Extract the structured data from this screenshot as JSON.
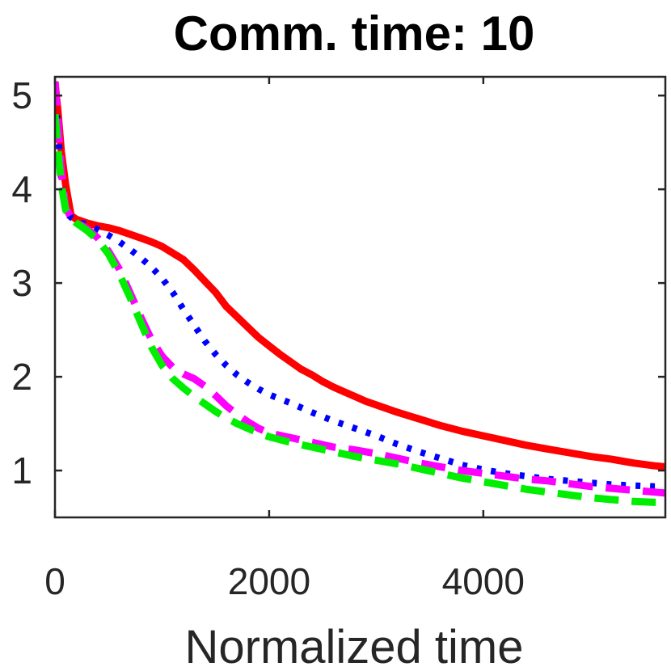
{
  "chart_data": {
    "type": "line",
    "title": "Comm. time: 10",
    "xlabel": "Normalized time",
    "ylabel": "",
    "xlim": [
      0,
      5700
    ],
    "ylim": [
      0.5,
      5.2
    ],
    "xticks": [
      0,
      2000,
      4000
    ],
    "xtick_labels": [
      "0",
      "2000",
      "4000"
    ],
    "yticks": [
      1,
      2,
      3,
      4,
      5
    ],
    "ytick_labels": [
      "1",
      "2",
      "3",
      "4",
      "5"
    ],
    "grid": false,
    "legend": "none",
    "series": [
      {
        "color": "#ff0000",
        "style": "solid",
        "x": [
          0,
          30,
          60,
          100,
          150,
          200,
          300,
          400,
          500,
          600,
          700,
          800,
          900,
          1000,
          1100,
          1200,
          1300,
          1400,
          1500,
          1600,
          1700,
          1800,
          1900,
          2000,
          2100,
          2200,
          2300,
          2400,
          2500,
          2600,
          2700,
          2800,
          2900,
          3000,
          3200,
          3400,
          3600,
          3800,
          4000,
          4200,
          4400,
          4600,
          4800,
          5000,
          5200,
          5400,
          5600,
          5700
        ],
        "y": [
          5.15,
          4.8,
          4.4,
          4.05,
          3.72,
          3.68,
          3.64,
          3.61,
          3.59,
          3.56,
          3.52,
          3.48,
          3.44,
          3.39,
          3.32,
          3.25,
          3.14,
          3.02,
          2.9,
          2.75,
          2.64,
          2.53,
          2.42,
          2.33,
          2.24,
          2.16,
          2.08,
          2.02,
          1.95,
          1.89,
          1.84,
          1.79,
          1.74,
          1.7,
          1.62,
          1.55,
          1.48,
          1.42,
          1.37,
          1.32,
          1.27,
          1.23,
          1.19,
          1.15,
          1.12,
          1.08,
          1.05,
          1.04
        ]
      },
      {
        "color": "#0000ff",
        "style": "dotted",
        "x": [
          0,
          30,
          60,
          100,
          150,
          200,
          300,
          400,
          500,
          600,
          700,
          800,
          900,
          1000,
          1100,
          1200,
          1300,
          1400,
          1500,
          1600,
          1700,
          1800,
          1900,
          2000,
          2200,
          2400,
          2600,
          2800,
          3000,
          3200,
          3400,
          3600,
          3800,
          4000,
          4200,
          4400,
          4600,
          4800,
          5000,
          5200,
          5400,
          5600,
          5700
        ],
        "y": [
          5.1,
          4.6,
          4.1,
          3.75,
          3.7,
          3.66,
          3.62,
          3.57,
          3.51,
          3.44,
          3.36,
          3.27,
          3.17,
          3.05,
          2.9,
          2.72,
          2.55,
          2.38,
          2.24,
          2.12,
          2.02,
          1.94,
          1.87,
          1.81,
          1.72,
          1.62,
          1.53,
          1.45,
          1.37,
          1.28,
          1.2,
          1.13,
          1.06,
          1.01,
          0.97,
          0.94,
          0.91,
          0.89,
          0.87,
          0.85,
          0.84,
          0.83,
          0.83
        ]
      },
      {
        "color": "#ff00ff",
        "style": "dashed",
        "x": [
          0,
          30,
          60,
          100,
          150,
          200,
          300,
          400,
          500,
          600,
          700,
          800,
          900,
          1000,
          1100,
          1200,
          1300,
          1400,
          1500,
          1600,
          1700,
          1800,
          1900,
          2000,
          2200,
          2400,
          2600,
          2800,
          3000,
          3200,
          3400,
          3600,
          3800,
          4000,
          4200,
          4400,
          4600,
          4800,
          5000,
          5200,
          5400,
          5600,
          5700
        ],
        "y": [
          5.15,
          4.7,
          4.2,
          3.8,
          3.7,
          3.65,
          3.58,
          3.48,
          3.34,
          3.15,
          2.9,
          2.64,
          2.4,
          2.22,
          2.1,
          2.03,
          1.98,
          1.9,
          1.8,
          1.69,
          1.6,
          1.52,
          1.45,
          1.4,
          1.35,
          1.3,
          1.25,
          1.22,
          1.18,
          1.13,
          1.08,
          1.04,
          1.0,
          0.97,
          0.94,
          0.91,
          0.89,
          0.86,
          0.83,
          0.81,
          0.79,
          0.77,
          0.76
        ]
      },
      {
        "color": "#00ee00",
        "style": "dashed",
        "x": [
          0,
          30,
          60,
          100,
          150,
          200,
          300,
          400,
          500,
          600,
          700,
          800,
          900,
          1000,
          1100,
          1200,
          1300,
          1400,
          1500,
          1600,
          1700,
          1800,
          1900,
          2000,
          2200,
          2400,
          2600,
          2800,
          3000,
          3200,
          3400,
          3600,
          3800,
          4000,
          4200,
          4400,
          4600,
          4800,
          5000,
          5200,
          5400,
          5600,
          5700
        ],
        "y": [
          4.8,
          4.4,
          4.05,
          3.78,
          3.7,
          3.64,
          3.56,
          3.46,
          3.31,
          3.1,
          2.85,
          2.58,
          2.32,
          2.12,
          1.98,
          1.88,
          1.79,
          1.71,
          1.63,
          1.56,
          1.5,
          1.45,
          1.4,
          1.36,
          1.3,
          1.25,
          1.2,
          1.15,
          1.11,
          1.07,
          1.02,
          0.97,
          0.92,
          0.88,
          0.84,
          0.8,
          0.77,
          0.74,
          0.71,
          0.69,
          0.67,
          0.66,
          0.66
        ]
      }
    ]
  }
}
